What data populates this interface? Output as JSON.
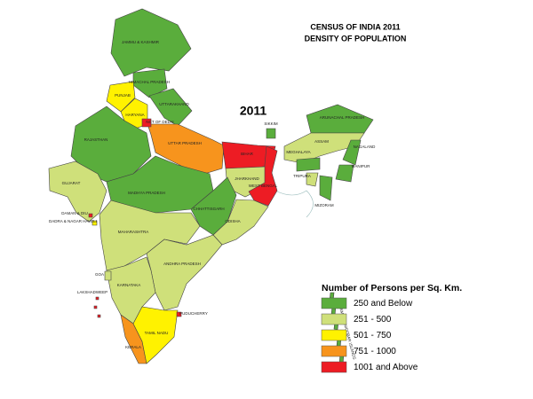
{
  "header": {
    "line1": "CENSUS OF INDIA 2011",
    "line2": "DENSITY OF POPULATION",
    "year": "2011"
  },
  "legend": {
    "title": "Number of Persons per Sq. Km.",
    "classes": [
      {
        "label": "250 and Below",
        "color": "#5aad3c"
      },
      {
        "label": "251 - 500",
        "color": "#cfe07a"
      },
      {
        "label": "501 - 750",
        "color": "#fff200"
      },
      {
        "label": "751 - 1000",
        "color": "#f7941d"
      },
      {
        "label": "1001 and Above",
        "color": "#ed1c24"
      }
    ]
  },
  "regions": [
    {
      "label": "JAMMU & KASHMIR",
      "color": "#5aad3c"
    },
    {
      "label": "HIMACHAL PRADESH",
      "color": "#5aad3c"
    },
    {
      "label": "PUNJAB",
      "color": "#fff200"
    },
    {
      "label": "HARYANA",
      "color": "#fff200"
    },
    {
      "label": "UTTARAKHAND",
      "color": "#5aad3c"
    },
    {
      "label": "UTTAR PRADESH",
      "color": "#f7941d"
    },
    {
      "label": "NCT OF DELHI",
      "color": "#ed1c24"
    },
    {
      "label": "RAJASTHAN",
      "color": "#5aad3c"
    },
    {
      "label": "GUJARAT",
      "color": "#cfe07a"
    },
    {
      "label": "MADHYA PRADESH",
      "color": "#5aad3c"
    },
    {
      "label": "BIHAR",
      "color": "#ed1c24"
    },
    {
      "label": "JHARKHAND",
      "color": "#cfe07a"
    },
    {
      "label": "WEST BENGAL",
      "color": "#ed1c24"
    },
    {
      "label": "CHHATTISGARH",
      "color": "#5aad3c"
    },
    {
      "label": "ODISHA",
      "color": "#cfe07a"
    },
    {
      "label": "MAHARASHTRA",
      "color": "#cfe07a"
    },
    {
      "label": "ANDHRA PRADESH",
      "color": "#cfe07a"
    },
    {
      "label": "KARNATAKA",
      "color": "#cfe07a"
    },
    {
      "label": "GOA",
      "color": "#cfe07a"
    },
    {
      "label": "KERALA",
      "color": "#f7941d"
    },
    {
      "label": "TAMIL NADU",
      "color": "#fff200"
    },
    {
      "label": "PUDUCHERRY",
      "color": "#ed1c24"
    },
    {
      "label": "SIKKIM",
      "color": "#5aad3c"
    },
    {
      "label": "ARUNACHAL PRADESH",
      "color": "#5aad3c"
    },
    {
      "label": "ASSAM",
      "color": "#cfe07a"
    },
    {
      "label": "NAGALAND",
      "color": "#5aad3c"
    },
    {
      "label": "MEGHALAYA",
      "color": "#5aad3c"
    },
    {
      "label": "MANIPUR",
      "color": "#5aad3c"
    },
    {
      "label": "MIZORAM",
      "color": "#5aad3c"
    },
    {
      "label": "TRIPURA",
      "color": "#cfe07a"
    },
    {
      "label": "DAMAN & DIU",
      "color": "#ed1c24"
    },
    {
      "label": "DADRA & NAGAR HAVELI",
      "color": "#fff200"
    },
    {
      "label": "ANDAMAN & NICOBAR ISLANDS",
      "color": "#5aad3c"
    },
    {
      "label": "LAKSHADWEEP",
      "color": "#ed1c24"
    }
  ]
}
